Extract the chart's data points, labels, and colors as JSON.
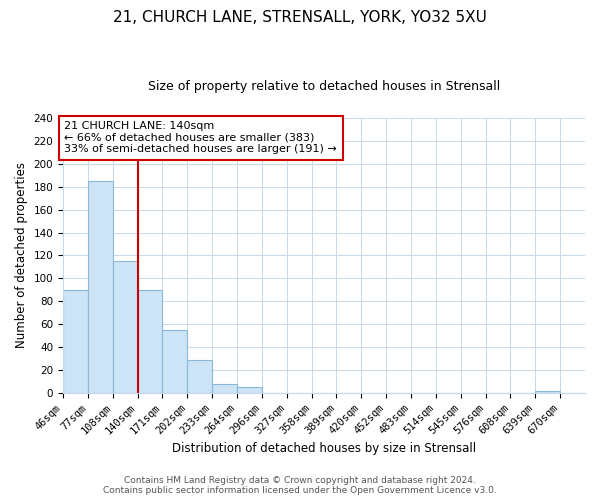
{
  "title": "21, CHURCH LANE, STRENSALL, YORK, YO32 5XU",
  "subtitle": "Size of property relative to detached houses in Strensall",
  "xlabel": "Distribution of detached houses by size in Strensall",
  "ylabel": "Number of detached properties",
  "bin_labels": [
    "46sqm",
    "77sqm",
    "108sqm",
    "140sqm",
    "171sqm",
    "202sqm",
    "233sqm",
    "264sqm",
    "296sqm",
    "327sqm",
    "358sqm",
    "389sqm",
    "420sqm",
    "452sqm",
    "483sqm",
    "514sqm",
    "545sqm",
    "576sqm",
    "608sqm",
    "639sqm",
    "670sqm"
  ],
  "bar_values": [
    90,
    185,
    115,
    90,
    55,
    29,
    8,
    5,
    0,
    0,
    0,
    0,
    0,
    0,
    0,
    0,
    0,
    0,
    0,
    2,
    0
  ],
  "bar_color": "#cce4f5",
  "bar_edge_color": "#8ab8d8",
  "vline_x": 3,
  "vline_color": "#cc0000",
  "annotation_box_text": "21 CHURCH LANE: 140sqm\n← 66% of detached houses are smaller (383)\n33% of semi-detached houses are larger (191) →",
  "annotation_box_edge_color": "#cc0000",
  "ylim": [
    0,
    240
  ],
  "yticks": [
    0,
    20,
    40,
    60,
    80,
    100,
    120,
    140,
    160,
    180,
    200,
    220,
    240
  ],
  "footer_line1": "Contains HM Land Registry data © Crown copyright and database right 2024.",
  "footer_line2": "Contains public sector information licensed under the Open Government Licence v3.0.",
  "background_color": "#ffffff",
  "grid_color": "#c8d8e8",
  "title_fontsize": 11,
  "subtitle_fontsize": 9,
  "axis_label_fontsize": 8.5,
  "tick_fontsize": 7.5,
  "annot_fontsize": 8,
  "footer_fontsize": 6.5
}
